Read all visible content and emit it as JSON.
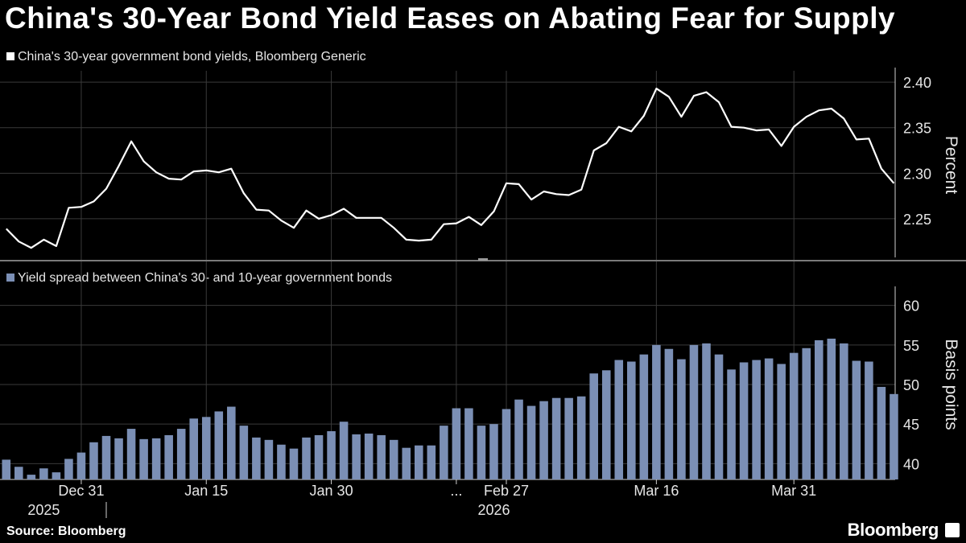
{
  "title": "China's 30-Year Bond Yield Eases on Abating Fear for Supply",
  "source": "Source: Bloomberg",
  "brand": "Bloomberg",
  "colors": {
    "line": "#ffffff",
    "bars": "#7b8fb5",
    "grid": "#3a3a3a",
    "background": "#000000"
  },
  "chart_data": [
    {
      "type": "line",
      "legend": "China's 30-year government bond yields, Bloomberg Generic",
      "ylabel": "Percent",
      "ylim": [
        2.2075,
        2.4125
      ],
      "yticks": [
        2.25,
        2.3,
        2.35,
        2.4
      ],
      "ytick_labels": [
        "2.25",
        "2.30",
        "2.35",
        "2.40"
      ],
      "values": [
        2.239,
        2.225,
        2.218,
        2.227,
        2.22,
        2.262,
        2.263,
        2.269,
        2.283,
        2.308,
        2.335,
        2.313,
        2.301,
        2.294,
        2.293,
        2.302,
        2.303,
        2.301,
        2.305,
        2.278,
        2.26,
        2.259,
        2.248,
        2.24,
        2.259,
        2.25,
        2.254,
        2.261,
        2.251,
        2.251,
        2.251,
        2.24,
        2.227,
        2.226,
        2.227,
        2.244,
        2.245,
        2.252,
        2.243,
        2.258,
        2.289,
        2.288,
        2.271,
        2.28,
        2.277,
        2.276,
        2.282,
        2.325,
        2.333,
        2.351,
        2.346,
        2.363,
        2.393,
        2.384,
        2.362,
        2.385,
        2.389,
        2.378,
        2.351,
        2.35,
        2.347,
        2.348,
        2.33,
        2.351,
        2.362,
        2.369,
        2.371,
        2.36,
        2.337,
        2.338,
        2.305,
        2.289
      ]
    },
    {
      "type": "bar",
      "legend": "Yield spread between China's 30- and 10-year government bonds",
      "ylabel": "Basis points",
      "ylim": [
        38,
        62
      ],
      "yticks": [
        40,
        45,
        50,
        55,
        60
      ],
      "ytick_labels": [
        "40",
        "45",
        "50",
        "55",
        "60"
      ],
      "values": [
        40.5,
        39.6,
        38.6,
        39.4,
        38.9,
        40.6,
        41.4,
        42.7,
        43.5,
        43.2,
        44.4,
        43.1,
        43.2,
        43.6,
        44.4,
        45.7,
        45.9,
        46.6,
        47.2,
        44.8,
        43.3,
        43.0,
        42.4,
        41.9,
        43.3,
        43.6,
        44.1,
        45.3,
        43.7,
        43.8,
        43.6,
        43.0,
        42.0,
        42.3,
        42.3,
        44.8,
        47.0,
        47.0,
        44.8,
        45.0,
        46.9,
        48.1,
        47.3,
        47.9,
        48.3,
        48.3,
        48.5,
        51.4,
        51.8,
        53.1,
        52.9,
        53.8,
        55.0,
        54.5,
        53.2,
        55.0,
        55.2,
        53.8,
        51.9,
        52.8,
        53.1,
        53.3,
        52.6,
        54.0,
        54.6,
        55.6,
        55.8,
        55.2,
        53.0,
        52.9,
        49.7,
        48.8
      ]
    }
  ],
  "x_axis": {
    "ticks": [
      {
        "label": "Dec 31",
        "index": 6
      },
      {
        "label": "Jan 15",
        "index": 16
      },
      {
        "label": "Jan 30",
        "index": 26
      },
      {
        "label": "...",
        "index": 36
      },
      {
        "label": "Feb 27",
        "index": 40
      },
      {
        "label": "Mar 16",
        "index": 52
      },
      {
        "label": "Mar 31",
        "index": 63
      }
    ],
    "years": [
      {
        "label": "2025",
        "index": 3
      },
      {
        "label": "2026",
        "index": 39
      }
    ]
  }
}
